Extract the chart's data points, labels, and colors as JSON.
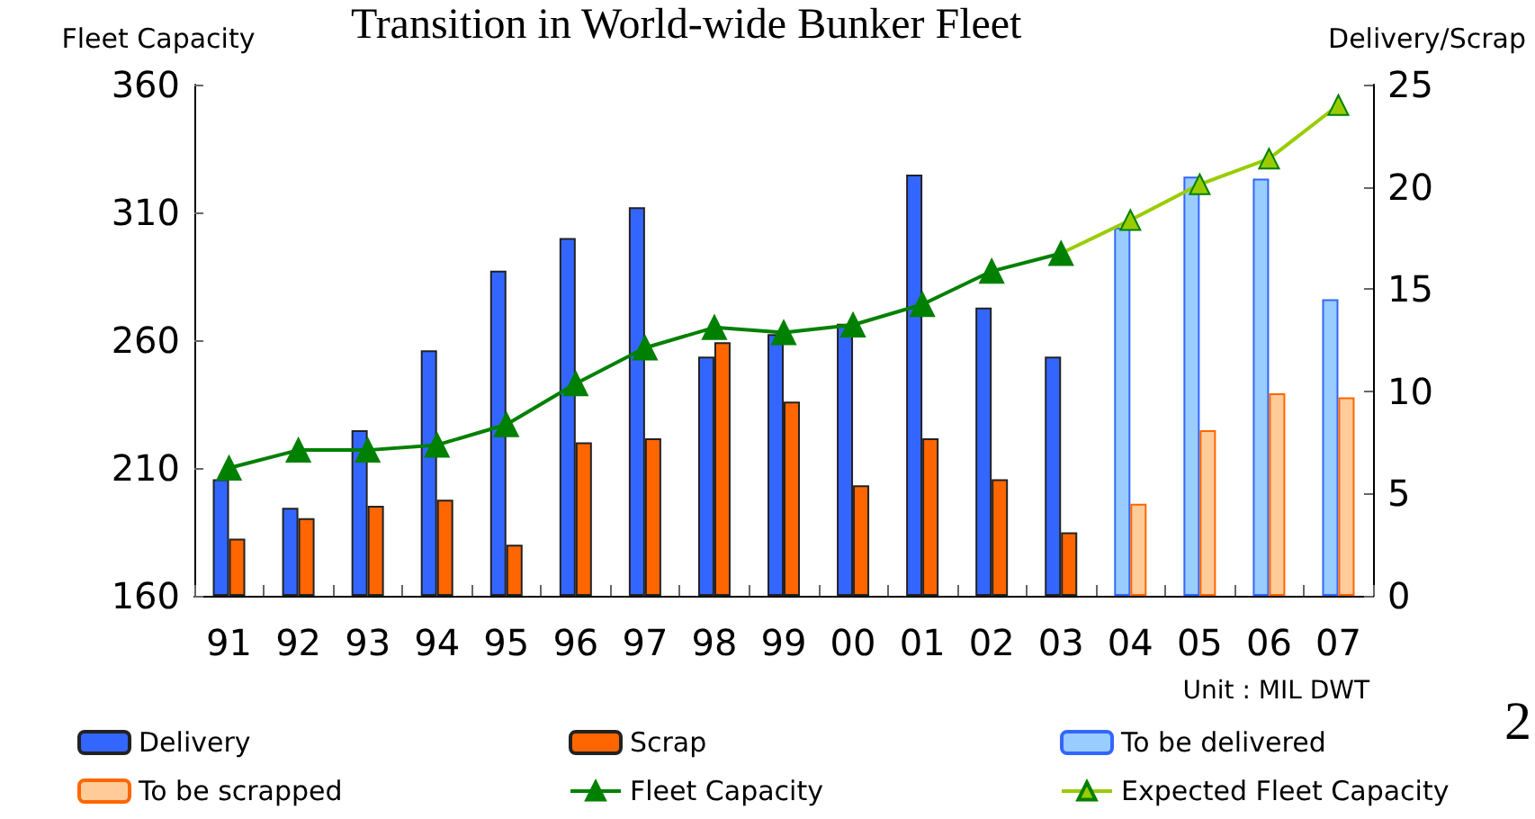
{
  "chart_data": {
    "type": "bar",
    "title": "Transition in World-wide Bunker Fleet",
    "ylabel": "Fleet Capacity",
    "y2label": "Delivery/Scrap",
    "categories": [
      "91",
      "92",
      "93",
      "94",
      "95",
      "96",
      "97",
      "98",
      "99",
      "00",
      "01",
      "02",
      "03",
      "04",
      "05",
      "06",
      "07"
    ],
    "series": [
      {
        "name": "Delivery",
        "axis": "y2",
        "color": "#3366ff",
        "values": [
          5.7,
          4.3,
          8.1,
          12.0,
          15.9,
          17.5,
          19.0,
          11.7,
          12.8,
          13.3,
          20.6,
          14.1,
          11.7,
          null,
          null,
          null,
          null
        ]
      },
      {
        "name": "Scrap",
        "axis": "y2",
        "color": "#ff6600",
        "values": [
          2.8,
          3.8,
          4.4,
          4.7,
          2.5,
          7.5,
          7.7,
          12.4,
          9.5,
          5.4,
          7.7,
          5.7,
          3.1,
          null,
          null,
          null,
          null
        ]
      },
      {
        "name": "To be delivered",
        "axis": "y2",
        "color": "#99ccff",
        "values": [
          null,
          null,
          null,
          null,
          null,
          null,
          null,
          null,
          null,
          null,
          null,
          null,
          null,
          18.0,
          20.5,
          20.4,
          14.5
        ]
      },
      {
        "name": "To be scrapped",
        "axis": "y2",
        "color": "#ffcc99",
        "values": [
          null,
          null,
          null,
          null,
          null,
          null,
          null,
          null,
          null,
          null,
          null,
          null,
          null,
          4.5,
          8.1,
          9.9,
          9.7
        ]
      },
      {
        "name": "Fleet Capacity",
        "type": "line",
        "color": "#008000",
        "values": [
          210,
          217,
          217,
          219,
          227,
          243,
          257,
          265,
          263,
          266,
          274,
          287,
          294,
          null,
          null,
          null,
          null
        ]
      },
      {
        "name": "Expected Fleet Capacity",
        "type": "line",
        "color": "#99cc00",
        "values": [
          null,
          null,
          null,
          null,
          null,
          null,
          null,
          null,
          null,
          null,
          null,
          null,
          294,
          307,
          321,
          331,
          352
        ]
      }
    ],
    "ylim": [
      160,
      360
    ],
    "yticks": [
      160,
      210,
      260,
      310,
      360
    ],
    "y2lim": [
      0,
      25
    ],
    "y2ticks": [
      0,
      5,
      10,
      15,
      20,
      25
    ],
    "marker": "triangle",
    "legend": "bottom",
    "grid": false,
    "annotations": [
      "Unit : MIL DWT",
      "2"
    ]
  }
}
